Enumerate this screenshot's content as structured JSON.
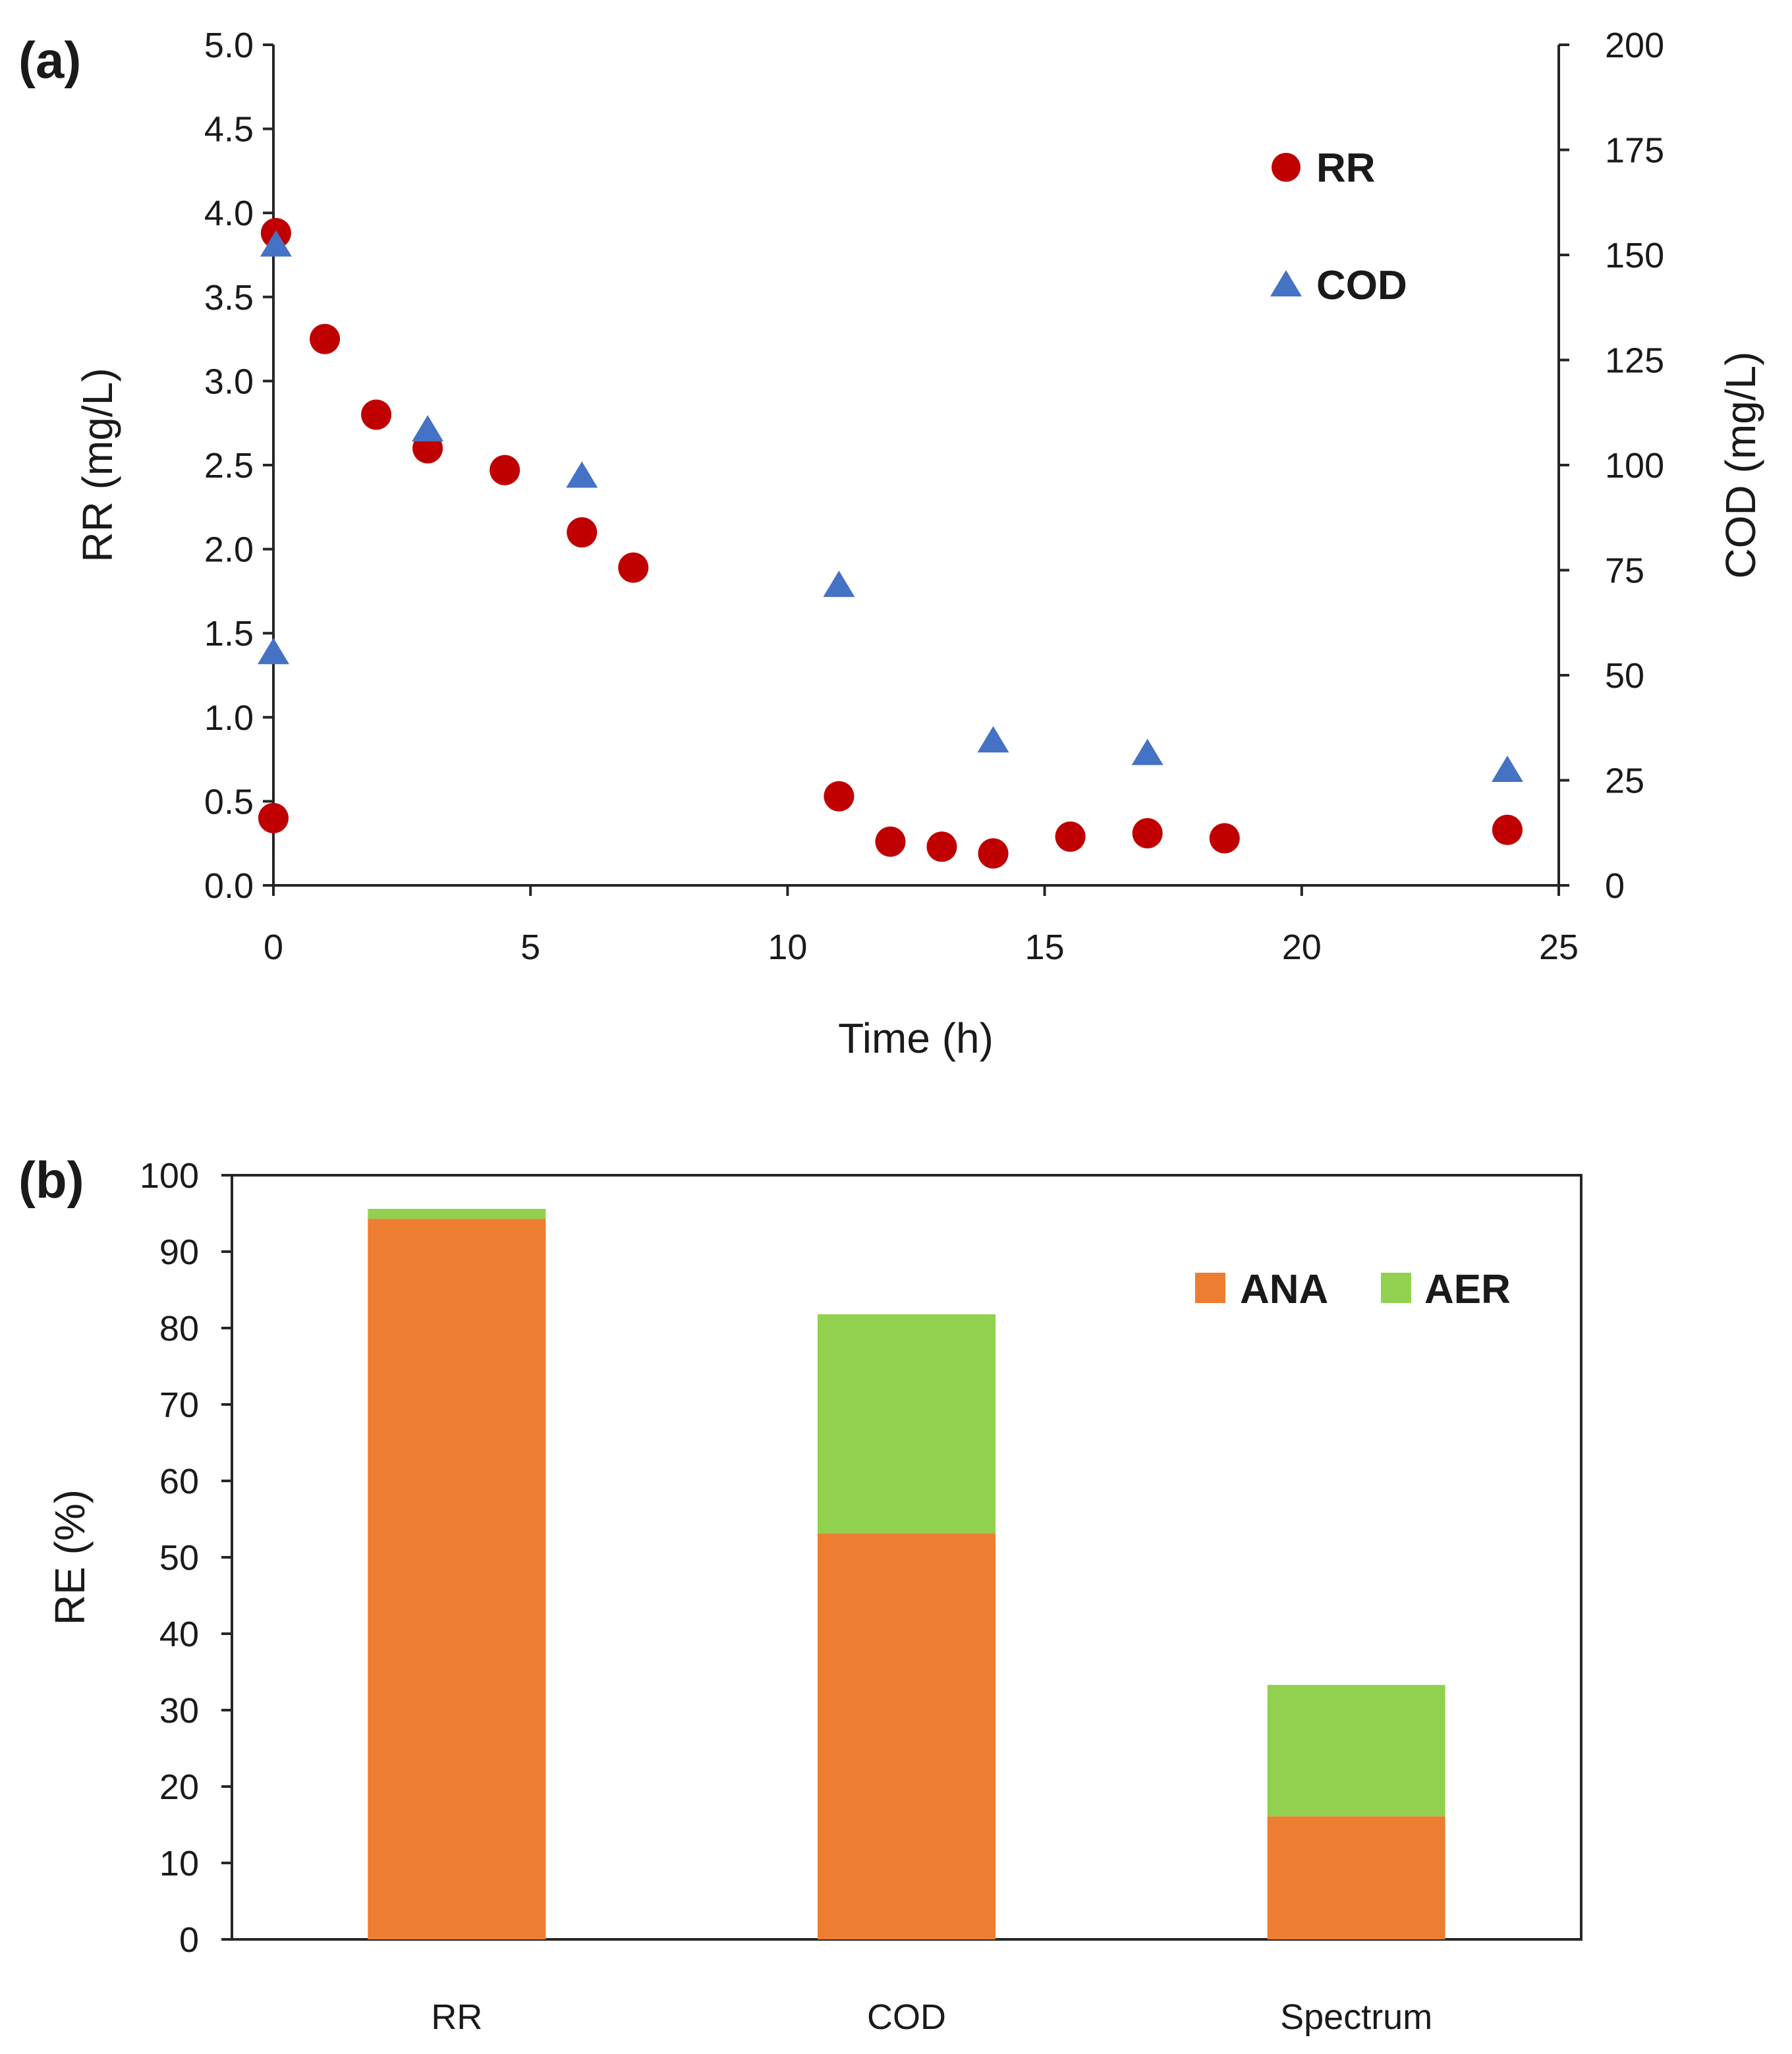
{
  "chart_data": [
    {
      "panel_label": "(a)",
      "type": "scatter",
      "xlabel": "Time (h)",
      "ylabel": "RR (mg/L)",
      "y2label": "COD (mg/L)",
      "xlim": [
        0,
        25
      ],
      "ylim": [
        0,
        5
      ],
      "y2lim": [
        0,
        200
      ],
      "xticks": [
        "0",
        "5",
        "10",
        "15",
        "20",
        "25"
      ],
      "yticks": [
        "0.0",
        "0.5",
        "1.0",
        "1.5",
        "2.0",
        "2.5",
        "3.0",
        "3.5",
        "4.0",
        "4.5",
        "5.0"
      ],
      "y2ticks": [
        "0",
        "25",
        "50",
        "75",
        "100",
        "125",
        "150",
        "175",
        "200"
      ],
      "legend_position": "top-right",
      "series": [
        {
          "name": "RR",
          "axis": "left",
          "marker": "circle",
          "color": "#c00000",
          "points": [
            [
              0,
              0.4
            ],
            [
              0.05,
              3.88
            ],
            [
              1,
              3.25
            ],
            [
              2,
              2.8
            ],
            [
              3,
              2.6
            ],
            [
              4.5,
              2.47
            ],
            [
              6,
              2.1
            ],
            [
              7,
              1.89
            ],
            [
              11,
              0.53
            ],
            [
              12,
              0.26
            ],
            [
              13,
              0.23
            ],
            [
              14,
              0.19
            ],
            [
              15.5,
              0.29
            ],
            [
              17,
              0.31
            ],
            [
              18.5,
              0.28
            ],
            [
              24,
              0.33
            ]
          ]
        },
        {
          "name": "COD",
          "axis": "right",
          "marker": "triangle",
          "color": "#4472c4",
          "points": [
            [
              0,
              55
            ],
            [
              0.05,
              152
            ],
            [
              3,
              108
            ],
            [
              6,
              97
            ],
            [
              11,
              71
            ],
            [
              14,
              34
            ],
            [
              17,
              31
            ],
            [
              24,
              27
            ]
          ]
        }
      ]
    },
    {
      "panel_label": "(b)",
      "type": "bar",
      "stacked": true,
      "ylabel": "RE (%)",
      "xlabel": "",
      "ylim": [
        0,
        100
      ],
      "yticks": [
        "0",
        "10",
        "20",
        "30",
        "40",
        "50",
        "60",
        "70",
        "80",
        "90",
        "100"
      ],
      "categories": [
        "RR",
        "COD",
        "Spectrum"
      ],
      "legend_position": "top-right",
      "series": [
        {
          "name": "ANA",
          "color": "#ed7d31",
          "values": [
            94.3,
            53.1,
            16.1
          ]
        },
        {
          "name": "AER",
          "color": "#92d050",
          "values": [
            1.3,
            28.7,
            17.2
          ]
        }
      ]
    }
  ]
}
